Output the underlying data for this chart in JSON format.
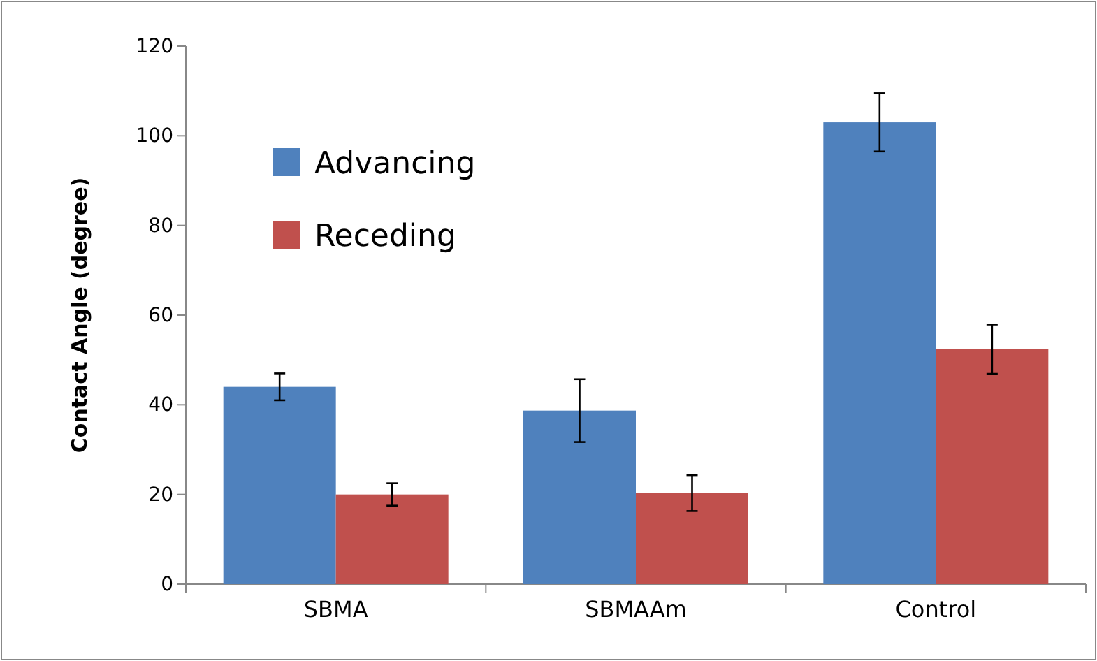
{
  "chart_data": {
    "type": "bar",
    "ylabel": "Contact Angle (degree)",
    "categories": [
      "SBMA",
      "SBMAAm",
      "Control"
    ],
    "series": [
      {
        "name": "Advancing",
        "color": "#4f81bd",
        "values": [
          44,
          38.7,
          103
        ],
        "errors": [
          3,
          7,
          6.5
        ]
      },
      {
        "name": "Receding",
        "color": "#c0504d",
        "values": [
          20,
          20.3,
          52.4
        ],
        "errors": [
          2.5,
          4,
          5.5
        ]
      }
    ],
    "ylim": [
      0,
      120
    ],
    "yticks": [
      0,
      20,
      40,
      60,
      80,
      100,
      120
    ],
    "grid": false,
    "legend": "top left"
  }
}
